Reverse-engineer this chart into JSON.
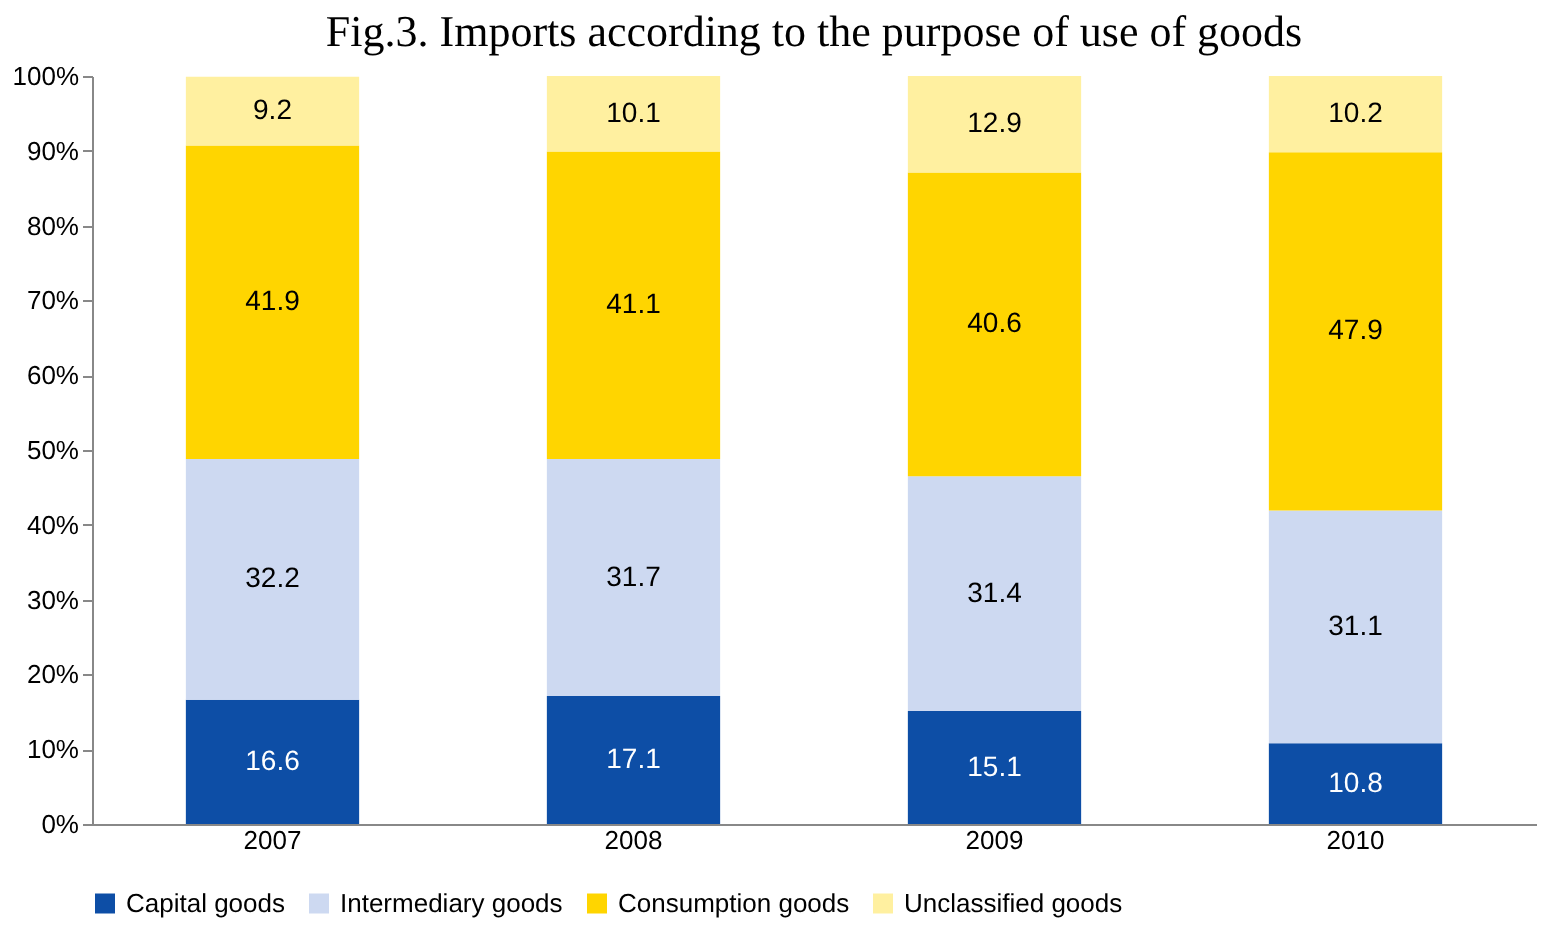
{
  "chart_data": {
    "type": "bar",
    "title": "Fig.3. Imports according to the purpose of use of goods",
    "categories": [
      "2007",
      "2008",
      "2009",
      "2010"
    ],
    "stacked": true,
    "series": [
      {
        "name": "Capital goods",
        "color": "#0d4ea6",
        "values": [
          16.6,
          17.1,
          15.1,
          10.8
        ]
      },
      {
        "name": "Intermediary goods",
        "color": "#cdd9f1",
        "values": [
          32.2,
          31.7,
          31.4,
          31.1
        ]
      },
      {
        "name": "Consumption goods",
        "color": "#ffd500",
        "values": [
          41.9,
          41.1,
          40.6,
          47.9
        ]
      },
      {
        "name": "Unclassified goods",
        "color": "#fff0a0",
        "values": [
          9.2,
          10.1,
          12.9,
          10.2
        ]
      }
    ],
    "ylim": [
      0,
      100
    ],
    "yticks": [
      {
        "value": 0,
        "label": "0%"
      },
      {
        "value": 10,
        "label": "10%"
      },
      {
        "value": 20,
        "label": "20%"
      },
      {
        "value": 30,
        "label": "30%"
      },
      {
        "value": 40,
        "label": "40%"
      },
      {
        "value": 50,
        "label": "50%"
      },
      {
        "value": 60,
        "label": "60%"
      },
      {
        "value": 70,
        "label": "70%"
      },
      {
        "value": 80,
        "label": "80%"
      },
      {
        "value": 90,
        "label": "90%"
      },
      {
        "value": 100,
        "label": "100%"
      }
    ],
    "data_labels": true,
    "grid": false,
    "legend": "bottom"
  }
}
